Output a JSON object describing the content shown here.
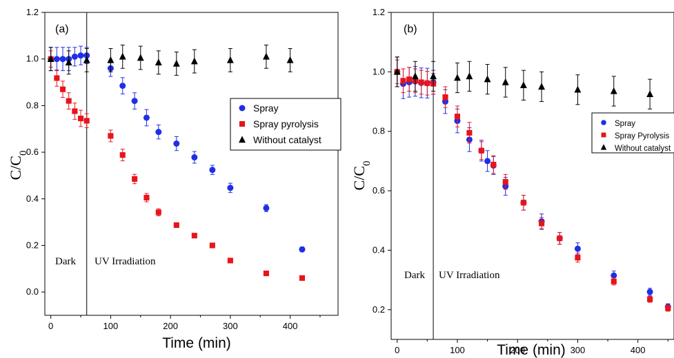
{
  "colors": {
    "spray": "#1f2fe6",
    "spray_pyrolysis": "#e8141b",
    "without_catalyst": "#000000",
    "axis": "#000000"
  },
  "chart_data": [
    {
      "type": "scatter",
      "panel_label": "(a)",
      "xlabel": "Time (min)",
      "ylabel_main": "C/C",
      "ylabel_sub": "0",
      "xlim": [
        -10,
        480
      ],
      "ylim": [
        -0.1,
        1.2
      ],
      "xticks": [
        0,
        100,
        200,
        300,
        400
      ],
      "yticks": [
        0.0,
        0.2,
        0.4,
        0.6,
        0.8,
        1.0,
        1.2
      ],
      "ytick_labels": [
        "0.0",
        "0.2",
        "0.4",
        "0.6",
        "0.8",
        "1.0",
        "1.2"
      ],
      "divider_x": 60,
      "region_labels": {
        "dark": "Dark",
        "uv": "UV Irradiation"
      },
      "legend_position": "upper-right",
      "series": [
        {
          "name": "Spray",
          "marker": "circle",
          "color_key": "spray",
          "x": [
            0,
            10,
            20,
            30,
            40,
            50,
            60,
            100,
            120,
            140,
            160,
            180,
            210,
            240,
            270,
            300,
            360,
            420
          ],
          "y": [
            1.0,
            1.0,
            1.0,
            1.0,
            1.01,
            1.015,
            1.015,
            0.96,
            0.885,
            0.82,
            0.748,
            0.687,
            0.637,
            0.578,
            0.524,
            0.447,
            0.36,
            0.183
          ],
          "err": [
            0.05,
            0.05,
            0.05,
            0.05,
            0.04,
            0.04,
            0.035,
            0.035,
            0.035,
            0.035,
            0.035,
            0.03,
            0.03,
            0.025,
            0.02,
            0.02,
            0.015,
            0.01
          ]
        },
        {
          "name": "Spray pyrolysis",
          "marker": "square",
          "color_key": "spray_pyrolysis",
          "x": [
            0,
            10,
            20,
            30,
            40,
            50,
            60,
            100,
            120,
            140,
            160,
            180,
            210,
            240,
            270,
            300,
            360,
            420
          ],
          "y": [
            1.0,
            0.918,
            0.87,
            0.82,
            0.776,
            0.745,
            0.735,
            0.67,
            0.588,
            0.485,
            0.405,
            0.342,
            0.287,
            0.242,
            0.2,
            0.135,
            0.08,
            0.06
          ],
          "err": [
            0.035,
            0.035,
            0.035,
            0.035,
            0.035,
            0.035,
            0.03,
            0.025,
            0.025,
            0.02,
            0.018,
            0.015,
            0.01,
            0.008,
            0.008,
            0.008,
            0.008,
            0.008
          ]
        },
        {
          "name": "Without catalyst",
          "marker": "triangle",
          "color_key": "without_catalyst",
          "x": [
            0,
            30,
            60,
            100,
            120,
            150,
            180,
            210,
            240,
            300,
            360,
            400
          ],
          "y": [
            1.0,
            0.985,
            0.995,
            0.995,
            1.01,
            1.005,
            0.985,
            0.98,
            0.99,
            0.995,
            1.01,
            0.995
          ],
          "err": [
            0.05,
            0.05,
            0.05,
            0.05,
            0.05,
            0.05,
            0.05,
            0.05,
            0.05,
            0.05,
            0.05,
            0.05
          ]
        }
      ]
    },
    {
      "type": "scatter",
      "panel_label": "(b)",
      "xlabel": "Time (min)",
      "ylabel_main": "C/C",
      "ylabel_sub": "0",
      "xlim": [
        -10,
        460
      ],
      "ylim": [
        0.1,
        1.2
      ],
      "xticks": [
        0,
        100,
        200,
        300,
        400
      ],
      "yticks": [
        0.2,
        0.4,
        0.6,
        0.8,
        1.0,
        1.2
      ],
      "ytick_labels": [
        "0.2",
        "0.4",
        "0.6",
        "0.8",
        "1.0",
        "1.2"
      ],
      "divider_x": 60,
      "region_labels": {
        "dark": "Dark",
        "uv": "UV Irradiation"
      },
      "legend_position": "right",
      "series": [
        {
          "name": "Spray",
          "marker": "circle",
          "color_key": "spray",
          "x": [
            0,
            10,
            20,
            30,
            40,
            50,
            60,
            80,
            100,
            120,
            140,
            150,
            160,
            180,
            210,
            240,
            270,
            300,
            360,
            420,
            450
          ],
          "y": [
            1.0,
            0.96,
            0.965,
            0.968,
            0.963,
            0.962,
            0.965,
            0.9,
            0.835,
            0.772,
            0.735,
            0.7,
            0.685,
            0.615,
            0.56,
            0.497,
            0.44,
            0.405,
            0.315,
            0.26,
            0.21
          ],
          "err": [
            0.05,
            0.05,
            0.05,
            0.05,
            0.05,
            0.05,
            0.04,
            0.04,
            0.04,
            0.04,
            0.035,
            0.035,
            0.03,
            0.03,
            0.025,
            0.025,
            0.02,
            0.02,
            0.015,
            0.012,
            0.01
          ]
        },
        {
          "name": "Spray Pyrolysis",
          "marker": "square",
          "color_key": "spray_pyrolysis",
          "x": [
            0,
            10,
            20,
            30,
            40,
            50,
            60,
            80,
            100,
            120,
            140,
            160,
            180,
            210,
            240,
            270,
            300,
            360,
            420,
            450
          ],
          "y": [
            1.0,
            0.97,
            0.975,
            0.97,
            0.965,
            0.962,
            0.96,
            0.915,
            0.85,
            0.795,
            0.735,
            0.688,
            0.63,
            0.56,
            0.49,
            0.44,
            0.375,
            0.295,
            0.235,
            0.205
          ],
          "err": [
            0.04,
            0.04,
            0.04,
            0.04,
            0.04,
            0.04,
            0.035,
            0.035,
            0.035,
            0.035,
            0.03,
            0.03,
            0.025,
            0.025,
            0.02,
            0.02,
            0.015,
            0.012,
            0.01,
            0.01
          ]
        },
        {
          "name": "Without catalyst",
          "marker": "triangle",
          "color_key": "without_catalyst",
          "x": [
            0,
            30,
            60,
            100,
            120,
            150,
            180,
            210,
            240,
            300,
            360,
            420
          ],
          "y": [
            1.0,
            0.985,
            0.985,
            0.98,
            0.985,
            0.975,
            0.965,
            0.955,
            0.95,
            0.94,
            0.935,
            0.925
          ],
          "err": [
            0.05,
            0.05,
            0.05,
            0.05,
            0.05,
            0.05,
            0.05,
            0.05,
            0.05,
            0.05,
            0.05,
            0.05
          ]
        }
      ]
    }
  ]
}
